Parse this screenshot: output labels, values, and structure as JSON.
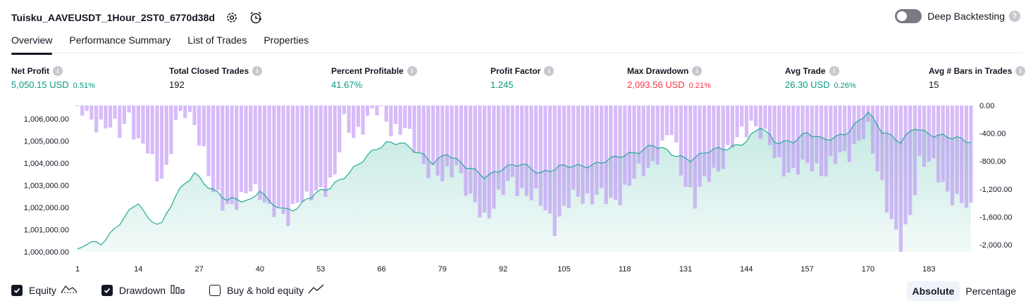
{
  "header": {
    "title": "Tuisku_AAVEUSDT_1Hour_2ST0_6770d38d",
    "deep_backtesting_label": "Deep Backtesting",
    "deep_backtesting_on": false
  },
  "tabs": [
    "Overview",
    "Performance Summary",
    "List of Trades",
    "Properties"
  ],
  "stats": [
    {
      "label": "Net Profit",
      "value": "5,050.15 USD",
      "pct": "0.51%",
      "color": "green"
    },
    {
      "label": "Total Closed Trades",
      "value": "192",
      "pct": "",
      "color": "dark"
    },
    {
      "label": "Percent Profitable",
      "value": "41.67%",
      "pct": "",
      "color": "green"
    },
    {
      "label": "Profit Factor",
      "value": "1.245",
      "pct": "",
      "color": "green"
    },
    {
      "label": "Max Drawdown",
      "value": "2,093.56 USD",
      "pct": "0.21%",
      "color": "red"
    },
    {
      "label": "Avg Trade",
      "value": "26.30 USD",
      "pct": "0.26%",
      "color": "green"
    },
    {
      "label": "Avg # Bars in Trades",
      "value": "15",
      "pct": "",
      "color": "dark"
    }
  ],
  "legend": {
    "equity": {
      "label": "Equity",
      "checked": true
    },
    "drawdown": {
      "label": "Drawdown",
      "checked": true
    },
    "buy_hold": {
      "label": "Buy & hold equity",
      "checked": false
    }
  },
  "modes": {
    "absolute": "Absolute",
    "percentage": "Percentage",
    "selected": "absolute"
  },
  "colors": {
    "equity_line": "#22ab94",
    "equity_fill": "#22ab94",
    "drawdown": "#bf92f5",
    "grid": "#f0f3fa"
  },
  "chart_data": {
    "type": "area",
    "x_ticks": [
      "1",
      "14",
      "27",
      "40",
      "53",
      "66",
      "79",
      "92",
      "105",
      "118",
      "131",
      "144",
      "157",
      "170",
      "183"
    ],
    "x_range": [
      1,
      192
    ],
    "y_left_ticks": [
      "1,006,000.00",
      "1,005,000.00",
      "1,004,000.00",
      "1,003,000.00",
      "1,002,000.00",
      "1,001,000.00",
      "1,000,000.00"
    ],
    "y_left_range": [
      1000000,
      1006600
    ],
    "y_right_ticks": [
      "0.00",
      "-400.00",
      "-800.00",
      "-1,200.00",
      "-1,600.00",
      "-2,000.00"
    ],
    "y_right_range": [
      -2100,
      0
    ],
    "series": [
      {
        "name": "Equity",
        "axis": "left",
        "keypoints": [
          [
            1,
            1000000
          ],
          [
            3,
            1000350
          ],
          [
            6,
            1000400
          ],
          [
            10,
            1001300
          ],
          [
            14,
            1002200
          ],
          [
            16,
            1001500
          ],
          [
            19,
            1001300
          ],
          [
            22,
            1002500
          ],
          [
            26,
            1003550
          ],
          [
            30,
            1002800
          ],
          [
            33,
            1002300
          ],
          [
            38,
            1002350
          ],
          [
            40,
            1002850
          ],
          [
            42,
            1002200
          ],
          [
            45,
            1001850
          ],
          [
            48,
            1002000
          ],
          [
            50,
            1002450
          ],
          [
            55,
            1002850
          ],
          [
            60,
            1003800
          ],
          [
            63,
            1004300
          ],
          [
            67,
            1004900
          ],
          [
            70,
            1005000
          ],
          [
            74,
            1004400
          ],
          [
            77,
            1004000
          ],
          [
            80,
            1004500
          ],
          [
            84,
            1003800
          ],
          [
            88,
            1003400
          ],
          [
            92,
            1003800
          ],
          [
            96,
            1003900
          ],
          [
            100,
            1003600
          ],
          [
            104,
            1003800
          ],
          [
            108,
            1003850
          ],
          [
            112,
            1004000
          ],
          [
            116,
            1004200
          ],
          [
            120,
            1004500
          ],
          [
            124,
            1004800
          ],
          [
            128,
            1004400
          ],
          [
            132,
            1004200
          ],
          [
            136,
            1004500
          ],
          [
            140,
            1004700
          ],
          [
            144,
            1005000
          ],
          [
            147,
            1005600
          ],
          [
            150,
            1005000
          ],
          [
            154,
            1005000
          ],
          [
            157,
            1005300
          ],
          [
            160,
            1005100
          ],
          [
            163,
            1005200
          ],
          [
            166,
            1005400
          ],
          [
            170,
            1006300
          ],
          [
            173,
            1005500
          ],
          [
            177,
            1004900
          ],
          [
            180,
            1005600
          ],
          [
            184,
            1005300
          ],
          [
            188,
            1005100
          ],
          [
            192,
            1005000
          ]
        ]
      },
      {
        "name": "Drawdown",
        "axis": "right",
        "keypoints": [
          [
            1,
            -40
          ],
          [
            3,
            -170
          ],
          [
            6,
            -250
          ],
          [
            10,
            -400
          ],
          [
            12,
            -100
          ],
          [
            14,
            -550
          ],
          [
            16,
            -670
          ],
          [
            18,
            -1000
          ],
          [
            20,
            -900
          ],
          [
            22,
            -300
          ],
          [
            24,
            -100
          ],
          [
            26,
            -200
          ],
          [
            28,
            -700
          ],
          [
            30,
            -1300
          ],
          [
            33,
            -1400
          ],
          [
            36,
            -1400
          ],
          [
            38,
            -1200
          ],
          [
            40,
            -1200
          ],
          [
            42,
            -1500
          ],
          [
            44,
            -1600
          ],
          [
            46,
            -1600
          ],
          [
            48,
            -1300
          ],
          [
            50,
            -1400
          ],
          [
            53,
            -1200
          ],
          [
            56,
            -1000
          ],
          [
            58,
            -300
          ],
          [
            60,
            -400
          ],
          [
            63,
            -200
          ],
          [
            66,
            -50
          ],
          [
            68,
            -300
          ],
          [
            71,
            -380
          ],
          [
            74,
            -700
          ],
          [
            76,
            -900
          ],
          [
            79,
            -1100
          ],
          [
            82,
            -800
          ],
          [
            85,
            -1400
          ],
          [
            88,
            -1600
          ],
          [
            90,
            -1400
          ],
          [
            94,
            -1100
          ],
          [
            98,
            -1300
          ],
          [
            101,
            -1500
          ],
          [
            103,
            -1700
          ],
          [
            105,
            -1500
          ],
          [
            108,
            -1300
          ],
          [
            112,
            -1300
          ],
          [
            115,
            -1400
          ],
          [
            118,
            -1200
          ],
          [
            121,
            -1000
          ],
          [
            124,
            -800
          ],
          [
            128,
            -400
          ],
          [
            130,
            -900
          ],
          [
            133,
            -1400
          ],
          [
            136,
            -1000
          ],
          [
            139,
            -800
          ],
          [
            141,
            -600
          ],
          [
            143,
            -400
          ],
          [
            145,
            -200
          ],
          [
            148,
            -500
          ],
          [
            151,
            -800
          ],
          [
            154,
            -1000
          ],
          [
            158,
            -800
          ],
          [
            161,
            -1000
          ],
          [
            164,
            -700
          ],
          [
            167,
            -600
          ],
          [
            170,
            -400
          ],
          [
            173,
            -1100
          ],
          [
            175,
            -1700
          ],
          [
            177,
            -2100
          ],
          [
            179,
            -1500
          ],
          [
            181,
            -800
          ],
          [
            184,
            -900
          ],
          [
            187,
            -1200
          ],
          [
            189,
            -1400
          ],
          [
            192,
            -1500
          ]
        ]
      }
    ]
  }
}
